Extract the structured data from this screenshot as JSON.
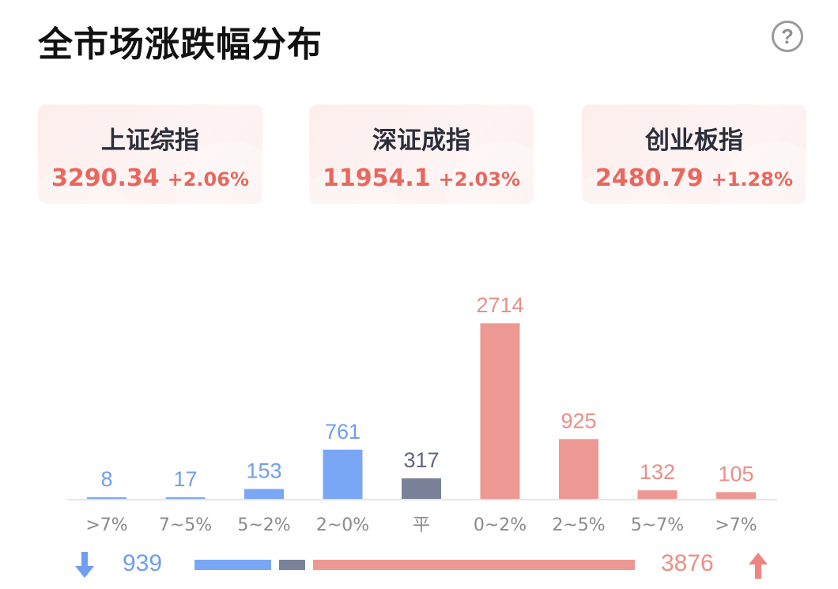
{
  "header": {
    "title": "全市场涨跌幅分布",
    "help_icon": "question-circle-icon",
    "help_label": "?"
  },
  "indices": [
    {
      "name": "上证综指",
      "price": "3290.34",
      "change": "+2.06%"
    },
    {
      "name": "深证成指",
      "price": "11954.1",
      "change": "+2.03%"
    },
    {
      "name": "创业板指",
      "price": "2480.79",
      "change": "+1.28%"
    }
  ],
  "chart_data": {
    "type": "bar",
    "categories": [
      ">7%",
      "7~5%",
      "5~2%",
      "2~0%",
      "平",
      "0~2%",
      "2~5%",
      "5~7%",
      ">7%"
    ],
    "values": [
      8,
      17,
      153,
      761,
      317,
      2714,
      925,
      132,
      105
    ],
    "groups": [
      "down",
      "down",
      "down",
      "down",
      "flat",
      "up",
      "up",
      "up",
      "up"
    ],
    "title": "",
    "xlabel": "",
    "ylabel": "",
    "ylim": [
      0,
      2714
    ],
    "grid": false
  },
  "summary": {
    "down_total": "939",
    "up_total": "3876",
    "down_icon": "arrow-down-icon",
    "up_icon": "arrow-up-icon"
  },
  "colors": {
    "down": "#7aa7f5",
    "flat": "#7a8299",
    "up": "#ee9893",
    "up_text": "#e8675e",
    "down_text": "#6f9ef0"
  }
}
